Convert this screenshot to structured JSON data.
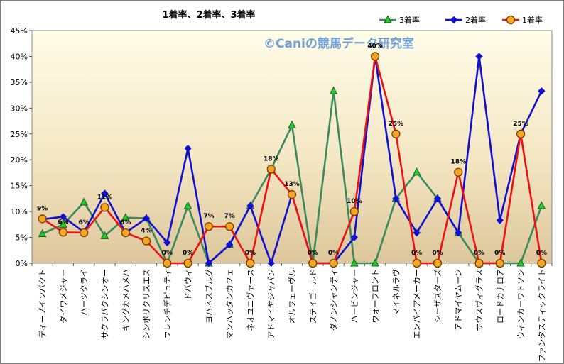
{
  "chart_data": {
    "type": "line",
    "title": "1着率、2着率、3着率",
    "watermark": "©Caniの競馬データ研究室",
    "ylim": [
      0,
      45
    ],
    "yticks": [
      "0%",
      "5%",
      "10%",
      "15%",
      "20%",
      "25%",
      "30%",
      "35%",
      "40%",
      "45%"
    ],
    "grid": false,
    "legend_position": "top-right",
    "categories": [
      "ディープインパクト",
      "ダイワメジャー",
      "ハーツクライ",
      "サクラバクシンオー",
      "キングカメハメハ",
      "シンボリクリスエス",
      "フレンチデピュティ",
      "ドバウィ",
      "ヨハネスブルグ",
      "マンハッタンカフェ",
      "ネオユニヴァース",
      "アドマイヤジャパン",
      "オルフェーヴル",
      "ステイゴールド",
      "ダノンシャンティ",
      "ハービンジャー",
      "ウォーフロント",
      "マイネルラヴ",
      "エンパイアメーカー",
      "シーザスターズ",
      "アドマイヤムーン",
      "サウスヴィグラス",
      "ロードカナロア",
      "ウィンカーワトソン",
      "ファンタスティックライト"
    ],
    "series": [
      {
        "name": "3着率",
        "color": "#3a8a5c",
        "marker": "triangle",
        "marker_fill": "#22cc22",
        "values": [
          5.7,
          7.5,
          11.8,
          5.3,
          8.8,
          8.7,
          0,
          11.1,
          0,
          3.6,
          11.1,
          18.2,
          26.7,
          0,
          33.3,
          0,
          0,
          12.5,
          17.6,
          12.5,
          5.9,
          0,
          0,
          0,
          11.1
        ]
      },
      {
        "name": "2着率",
        "color": "#1010d0",
        "marker": "diamond",
        "marker_fill": "#1010d0",
        "values": [
          8.5,
          9.0,
          6.0,
          13.5,
          5.9,
          8.7,
          4.0,
          22.2,
          0,
          3.6,
          11.1,
          0,
          13.3,
          0,
          0,
          5.0,
          40.0,
          12.5,
          5.9,
          12.5,
          5.9,
          40.0,
          8.3,
          25.0,
          33.3
        ]
      },
      {
        "name": "1着率",
        "color": "#ee1111",
        "marker": "circle",
        "marker_fill": "#f5a623",
        "values": [
          8.6,
          6.0,
          5.9,
          10.8,
          5.9,
          4.3,
          0,
          0,
          7.1,
          7.1,
          0,
          18.2,
          13.3,
          0,
          0,
          10.0,
          40.0,
          25.0,
          0,
          0,
          17.6,
          0,
          0,
          25.0,
          0
        ]
      }
    ],
    "data_labels": [
      "9%",
      "6%",
      "6%",
      "11%",
      "6%",
      "4%",
      "0%",
      "0%",
      "7%",
      "7%",
      "0%",
      "18%",
      "13%",
      "0%",
      "0%",
      "10%",
      "40%",
      "25%",
      "0%",
      "0%",
      "18%",
      "0%",
      "0%",
      "25%",
      "0%"
    ]
  }
}
